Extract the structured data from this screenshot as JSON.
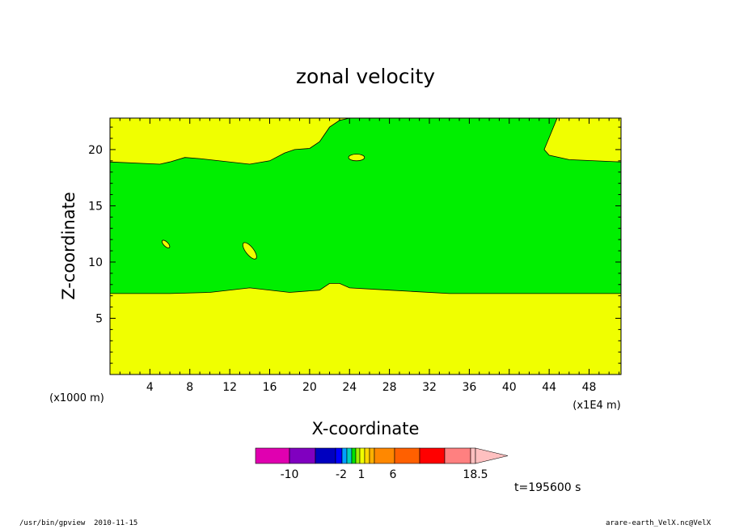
{
  "chart_data": {
    "type": "contour",
    "title": "zonal velocity",
    "xlabel": "X-coordinate",
    "ylabel": "Z-coordinate",
    "x_unit_left": "(x1000 m)",
    "x_unit_right": "(x1E4 m)",
    "xlim": [
      0,
      51.2
    ],
    "ylim": [
      0,
      22.8
    ],
    "x_ticks": [
      4,
      8,
      12,
      16,
      20,
      24,
      28,
      32,
      36,
      40,
      44,
      48
    ],
    "y_ticks": [
      5,
      10,
      15,
      20
    ],
    "fill_colors": {
      "background": "#f0ff00",
      "band": "#00ef00"
    },
    "green_band": {
      "lower_boundary": [
        [
          0,
          7.2
        ],
        [
          6,
          7.2
        ],
        [
          10,
          7.3
        ],
        [
          14,
          7.7
        ],
        [
          18,
          7.3
        ],
        [
          21,
          7.5
        ],
        [
          22,
          8.1
        ],
        [
          23,
          8.1
        ],
        [
          24,
          7.7
        ],
        [
          28,
          7.5
        ],
        [
          34,
          7.2
        ],
        [
          51.2,
          7.2
        ]
      ],
      "upper_boundary": [
        [
          0,
          18.9
        ],
        [
          5,
          18.7
        ],
        [
          6,
          18.9
        ],
        [
          7.5,
          19.3
        ],
        [
          9,
          19.2
        ],
        [
          14,
          18.7
        ],
        [
          16,
          19.0
        ],
        [
          17.5,
          19.7
        ],
        [
          18.5,
          20.0
        ],
        [
          20,
          20.1
        ],
        [
          21,
          20.7
        ],
        [
          22,
          22.0
        ],
        [
          23,
          22.6
        ],
        [
          24,
          22.8
        ],
        [
          35,
          22.8
        ],
        [
          43,
          22.8
        ],
        [
          44.8,
          22.8
        ],
        [
          43.5,
          20.0
        ],
        [
          44,
          19.5
        ],
        [
          46,
          19.1
        ],
        [
          51.2,
          18.9
        ]
      ]
    },
    "small_contours": [
      {
        "name": "yellow-blob-upper",
        "cx": 24.7,
        "cy": 19.3,
        "rx": 0.8,
        "ry": 0.3,
        "rot": 0,
        "color": "#f0ff00"
      },
      {
        "name": "yellow-blob-left",
        "cx": 5.6,
        "cy": 11.6,
        "rx": 0.5,
        "ry": 0.2,
        "rot": 45,
        "color": "#f0ff00"
      },
      {
        "name": "yellow-blob-mid",
        "cx": 14.0,
        "cy": 11.0,
        "rx": 1.0,
        "ry": 0.35,
        "rot": 52,
        "color": "#f0ff00"
      }
    ],
    "colorbar": {
      "colors": [
        "#e000b0",
        "#8000c0",
        "#0000c0",
        "#0000ff",
        "#00a0ff",
        "#00d0c0",
        "#00e000",
        "#a0f000",
        "#f0ff00",
        "#ffd800",
        "#ffb000",
        "#ff8800",
        "#ff6000",
        "#ff0000",
        "#ff8080",
        "#ffc0c0"
      ],
      "tick_labels": [
        "-10",
        "-2",
        "1",
        "6",
        "18.5"
      ]
    },
    "time_label": "t=195600  s"
  },
  "footer": {
    "left": "/usr/bin/gpview  2010-11-15",
    "right": "arare-earth_VelX.nc@VelX"
  }
}
